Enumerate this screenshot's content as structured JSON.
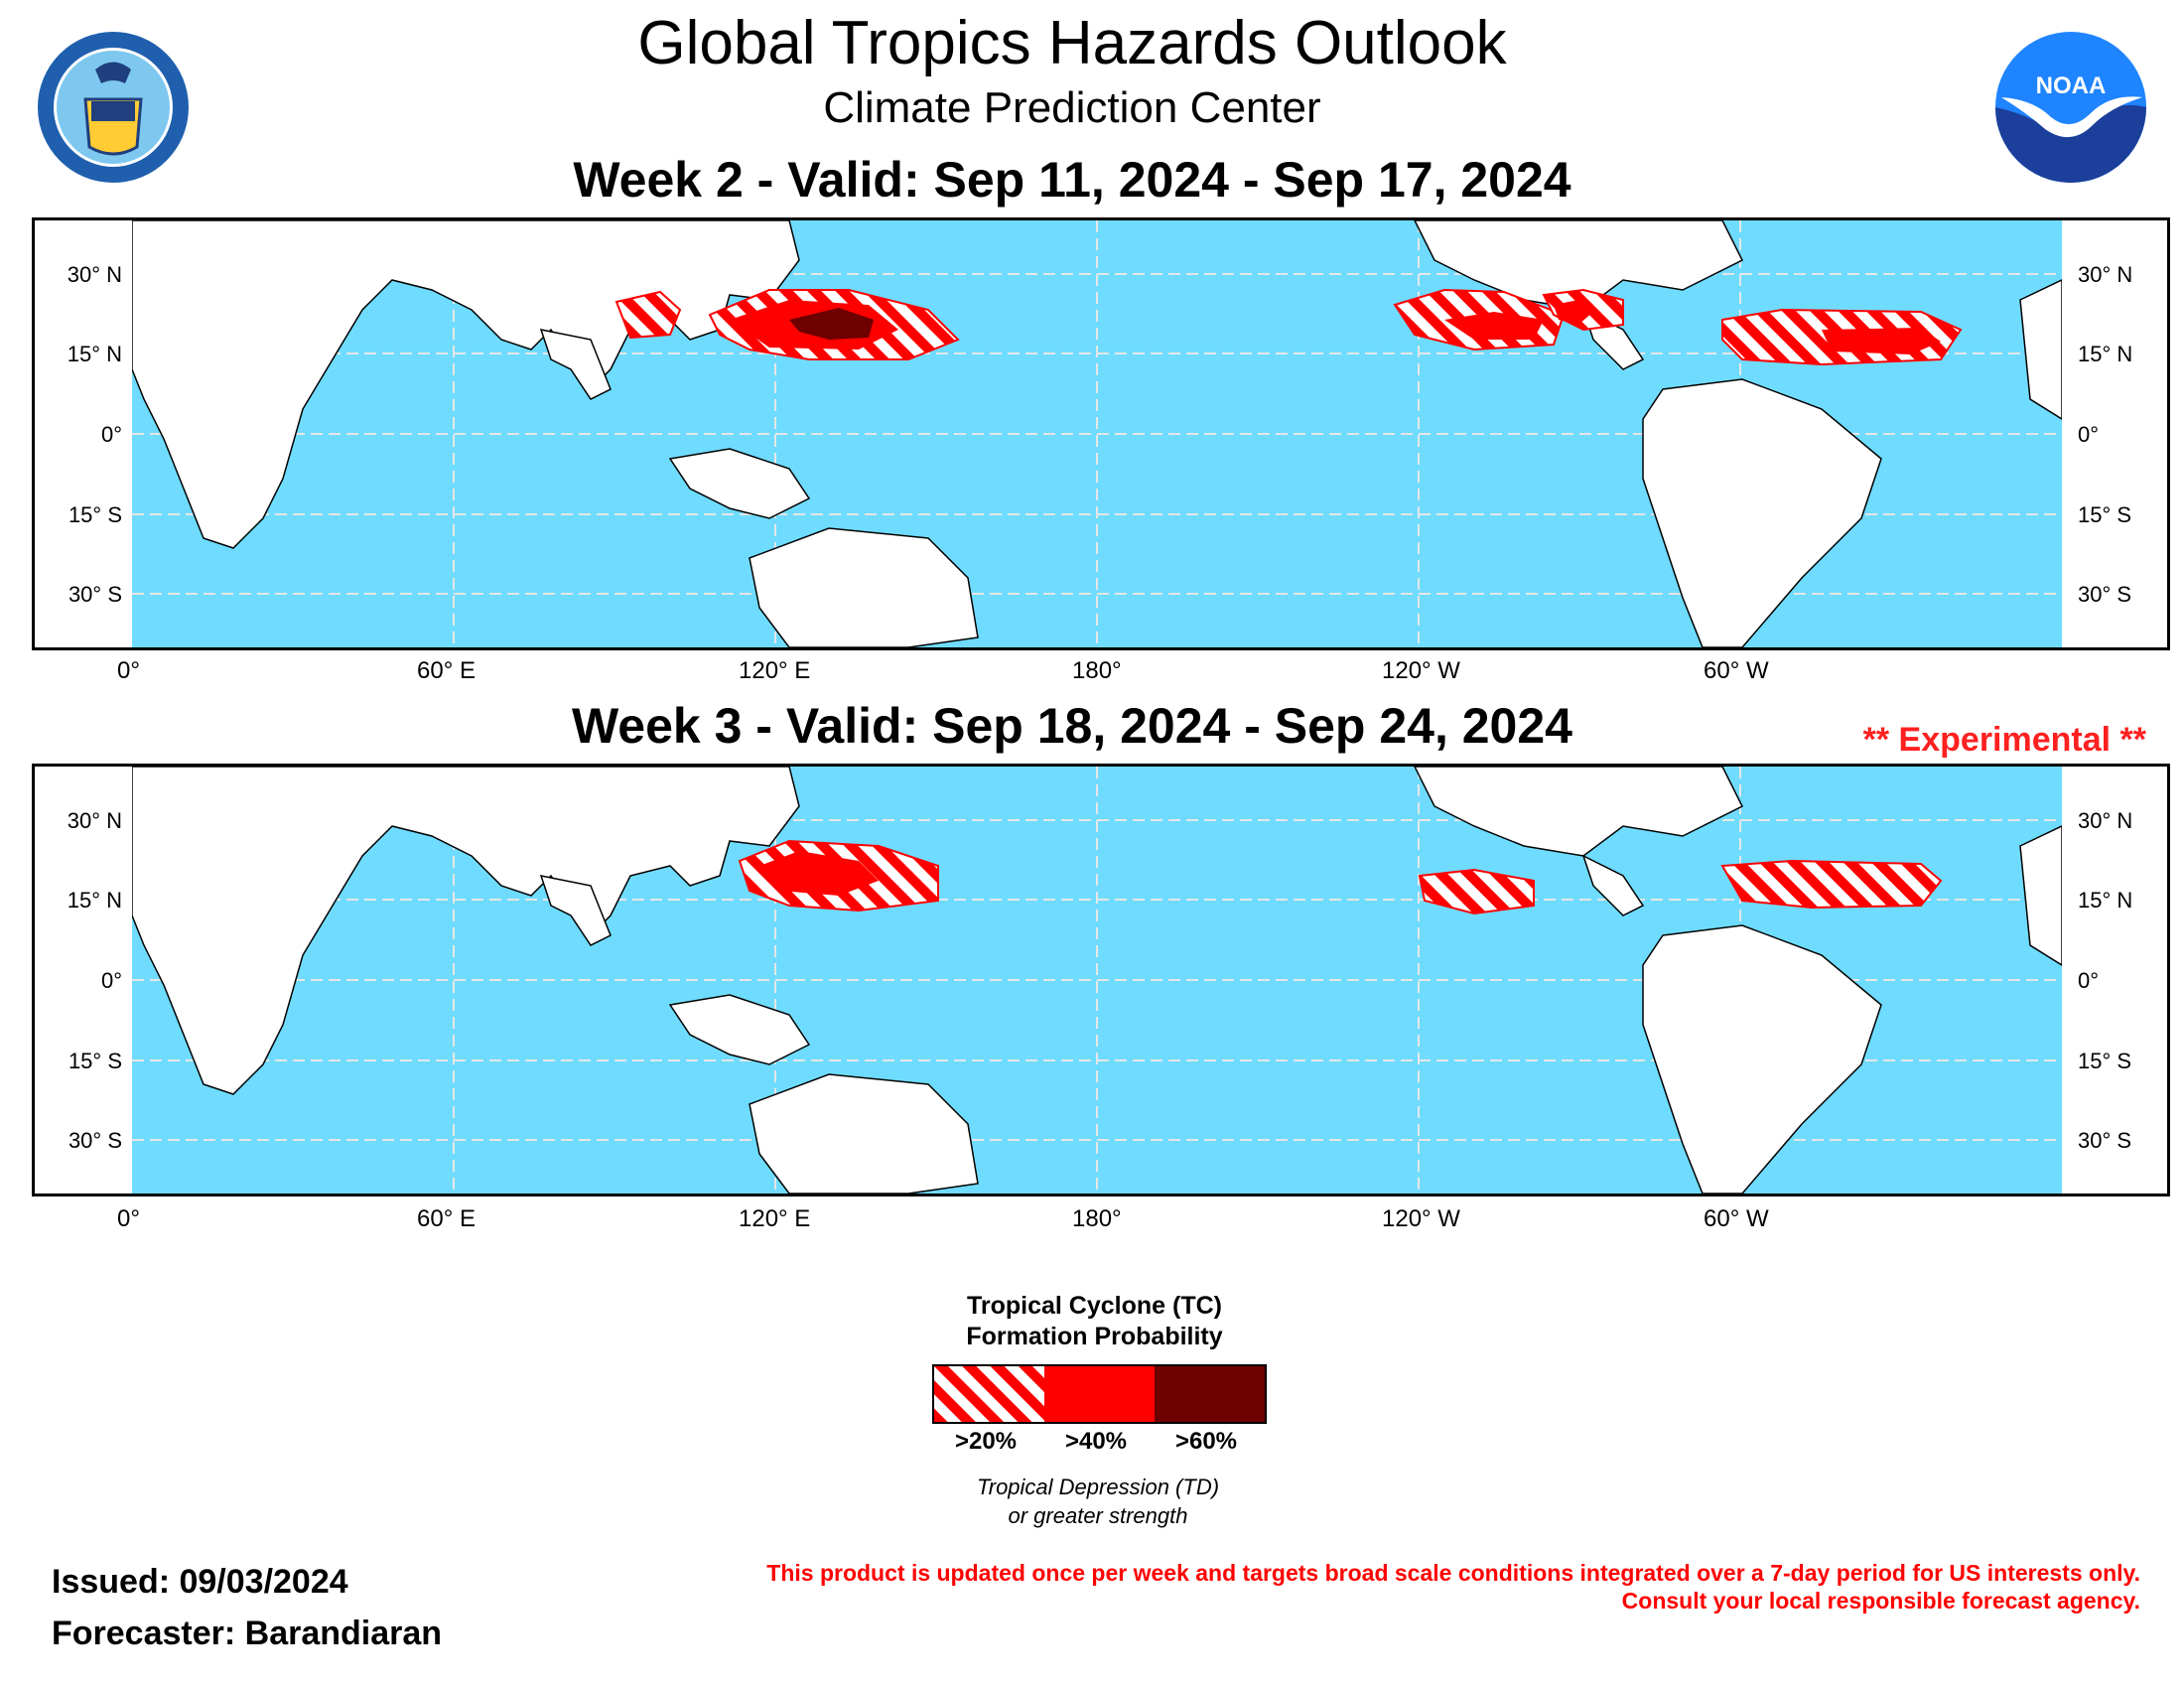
{
  "header": {
    "title": "Global Tropics Hazards Outlook",
    "subtitle": "Climate Prediction Center",
    "logo_left": "Department of Commerce seal",
    "logo_left_text": "DEPARTMENT OF COMMERCE · UNITED STATES OF AMERICA",
    "logo_right": "NOAA logo",
    "logo_right_text": "NOAA"
  },
  "maps": [
    {
      "title": "Week 2 - Valid: Sep 11, 2024 - Sep 17, 2024",
      "experimental": ""
    },
    {
      "title": "Week 3 - Valid: Sep 18, 2024 - Sep 24, 2024",
      "experimental": "** Experimental **"
    }
  ],
  "axes": {
    "lat_left": [
      "30° N",
      "15° N",
      "0°",
      "15° S",
      "30° S"
    ],
    "lat_right": [
      "30° N",
      "15° N",
      "0°",
      "15° S",
      "30° S"
    ],
    "lon": [
      "0°",
      "60° E",
      "120° E",
      "180°",
      "120° W",
      "60° W"
    ]
  },
  "legend": {
    "title_line1": "Tropical Cyclone (TC)",
    "title_line2": "Formation Probability",
    "items": [
      {
        "label": ">20%",
        "fill": "hatched",
        "color": "#ff0000"
      },
      {
        "label": ">40%",
        "fill": "solid",
        "color": "#ff0000"
      },
      {
        "label": ">60%",
        "fill": "solid",
        "color": "#6e0000"
      }
    ],
    "caption_line1": "Tropical Depression (TD)",
    "caption_line2": "or greater strength"
  },
  "footer": {
    "issued": "Issued: 09/03/2024",
    "forecaster": "Forecaster: Barandiaran",
    "disclaimer_line1": "This product is updated once per week and targets broad scale conditions integrated over a 7-day period for US interests only.",
    "disclaimer_line2": "Consult your local responsible forecast agency."
  },
  "colors": {
    "ocean": "#6fdcff",
    "land": "#ffffff",
    "prob_20": "#ff0000",
    "prob_40": "#ff0000",
    "prob_60": "#6e0000",
    "experimental_text": "#ff2020"
  }
}
